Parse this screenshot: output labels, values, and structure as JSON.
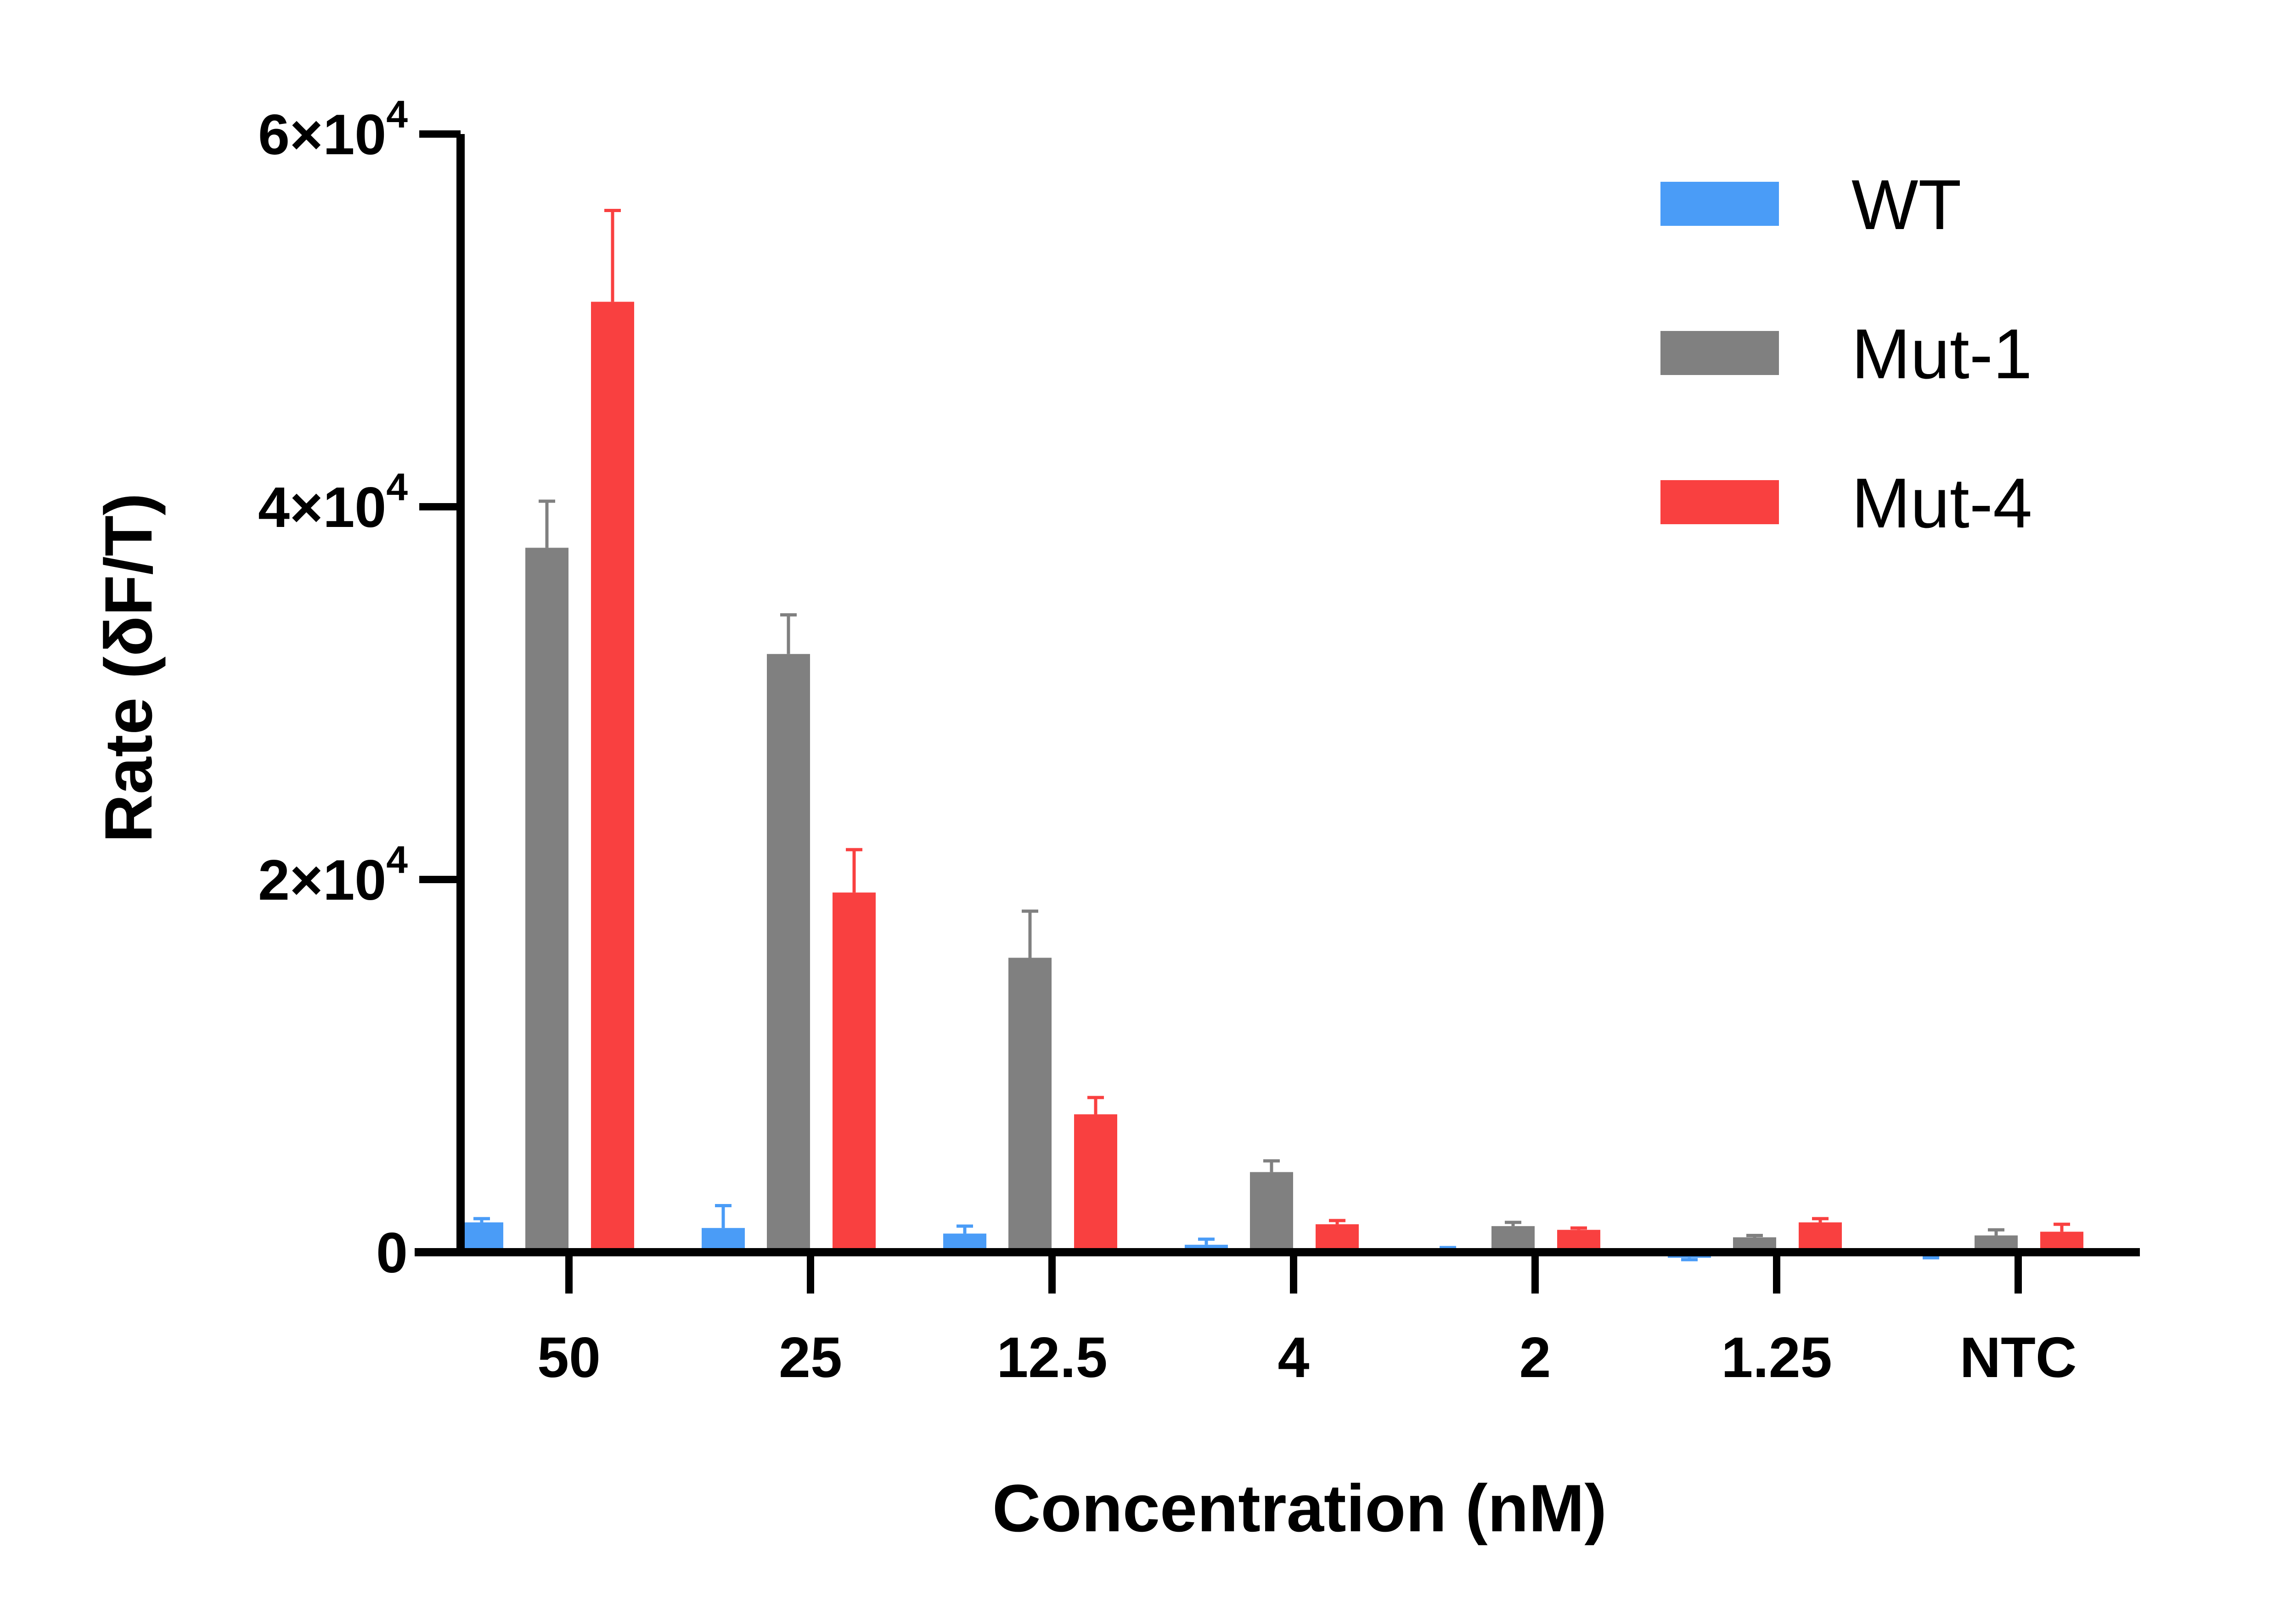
{
  "chart_data": {
    "type": "bar",
    "xlabel": "Concentration (nM)",
    "ylabel": "Rate (δF/T)",
    "categories": [
      "50",
      "25",
      "12.5",
      "4",
      "2",
      "1.25",
      "NTC"
    ],
    "ylim": [
      0,
      60000
    ],
    "yticks": [
      {
        "value": 0,
        "mantissa": "0",
        "exponent": ""
      },
      {
        "value": 20000,
        "mantissa": "2×10",
        "exponent": "4"
      },
      {
        "value": 40000,
        "mantissa": "4×10",
        "exponent": "4"
      },
      {
        "value": 60000,
        "mantissa": "6×10",
        "exponent": "4"
      }
    ],
    "legend": {
      "position": "top-right"
    },
    "series": [
      {
        "name": "WT",
        "color": "#4a9cf7",
        "values": [
          1600,
          1300,
          1000,
          400,
          150,
          -300,
          -200
        ],
        "errors": [
          200,
          1200,
          400,
          300,
          100,
          100,
          100
        ]
      },
      {
        "name": "Mut-1",
        "color": "#808080",
        "values": [
          37800,
          32100,
          15800,
          4300,
          1400,
          800,
          900
        ],
        "errors": [
          2500,
          2100,
          2500,
          600,
          200,
          100,
          300
        ]
      },
      {
        "name": "Mut-4",
        "color": "#f94040",
        "values": [
          51000,
          19300,
          7400,
          1500,
          1200,
          1600,
          1100
        ],
        "errors": [
          4900,
          2300,
          900,
          200,
          100,
          200,
          400
        ]
      }
    ]
  }
}
